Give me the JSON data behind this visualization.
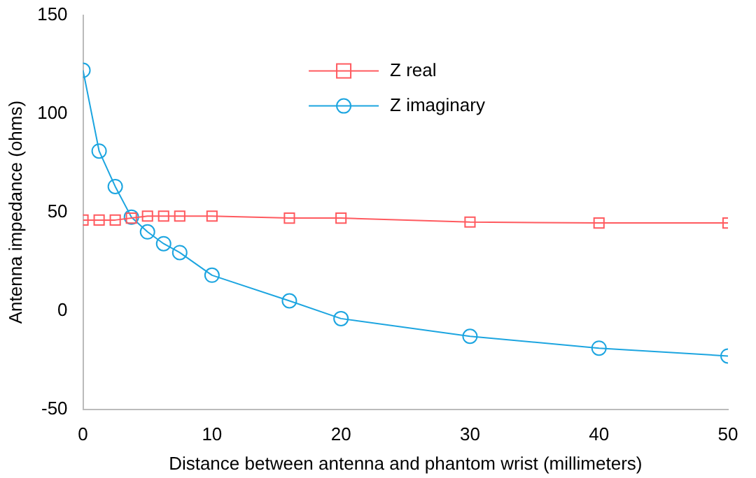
{
  "chart_data": {
    "type": "line",
    "xlabel": "Distance between antenna and phantom wrist (millimeters)",
    "ylabel": "Antenna impedance (ohms)",
    "x": [
      0,
      1.25,
      2.5,
      3.75,
      5,
      6.25,
      7.5,
      10,
      16,
      20,
      30,
      40,
      50
    ],
    "series": [
      {
        "name": "Z real",
        "color": "#ff5a5f",
        "marker": "square",
        "values": [
          46,
          46,
          46,
          47,
          48,
          48,
          48,
          48,
          47,
          47,
          45,
          44.5,
          44.5
        ]
      },
      {
        "name": "Z imaginary",
        "color": "#1ca5e0",
        "marker": "circle",
        "values": [
          122,
          81,
          63,
          47.5,
          40,
          34,
          29.5,
          18,
          5,
          -4,
          -13,
          -19,
          -23
        ]
      }
    ],
    "xlim": [
      0,
      50
    ],
    "xticks": [
      0,
      10,
      20,
      30,
      40,
      50
    ],
    "ylim": [
      -50,
      150
    ],
    "yticks": [
      -50,
      0,
      50,
      100,
      150
    ],
    "grid": false,
    "legend": "top"
  }
}
